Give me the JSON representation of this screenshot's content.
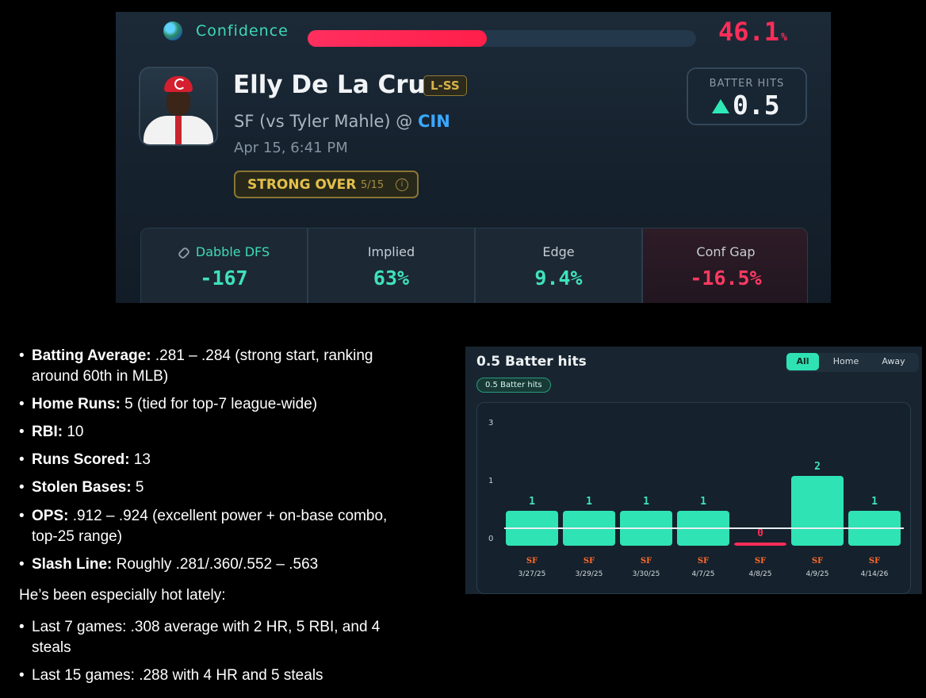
{
  "header": {
    "confidence_label": "Confidence",
    "confidence_value": "46.1",
    "confidence_unit": "%",
    "confidence_fraction": 0.461
  },
  "player": {
    "name": "Elly De La Cruz",
    "position": "L-SS",
    "matchup_prefix": "SF (vs Tyler Mahle) @ ",
    "matchup_team": "CIN",
    "game_time": "Apr 15, 6:41 PM",
    "signal_label": "STRONG OVER",
    "signal_count": "5/15",
    "info_glyph": "i"
  },
  "prop": {
    "label": "BATTER HITS",
    "line": "0.5",
    "direction_icon": "up-triangle-icon"
  },
  "stats": [
    {
      "title": "Dabble DFS",
      "value": "-167"
    },
    {
      "title": "Implied",
      "value": "63%"
    },
    {
      "title": "Edge",
      "value": "9.4%"
    },
    {
      "title": "Conf Gap",
      "value": "-16.5%"
    }
  ],
  "bullets": [
    {
      "label": "Batting Average:",
      "text": " .281 – .284 (strong start, ranking around 60th in MLB)"
    },
    {
      "label": "Home Runs:",
      "text": " 5 (tied for top-7 league-wide)"
    },
    {
      "label": "RBI:",
      "text": " 10"
    },
    {
      "label": "Runs Scored:",
      "text": " 13"
    },
    {
      "label": "Stolen Bases:",
      "text": " 5"
    },
    {
      "label": "OPS:",
      "text": " .912 – .924 (excellent power + on-base combo, top-25 range)"
    },
    {
      "label": "Slash Line:",
      "text": " Roughly .281/.360/.552 – .563"
    }
  ],
  "hot_intro": "He’s been especially hot lately:",
  "hot_bullets": [
    "Last 7 games: .308 average with 2 HR, 5 RBI, and 4 steals",
    "Last 15 games: .288 with 4 HR and 5 steals"
  ],
  "panel": {
    "title": "0.5 Batter hits",
    "filters": [
      "All",
      "Home",
      "Away"
    ],
    "active_filter": "All",
    "chip": "0.5 Batter hits"
  },
  "chart_data": {
    "type": "bar",
    "categories": [
      "3/27/25",
      "3/29/25",
      "3/30/25",
      "4/7/25",
      "4/8/25",
      "4/9/25",
      "4/14/26"
    ],
    "values": [
      1,
      1,
      1,
      1,
      0,
      2,
      1
    ],
    "line_value": 0.5,
    "yticks": [
      "3",
      "1",
      "0"
    ],
    "opponent_icon": "sf-giants-logo-icon",
    "colors": {
      "hit": "#2fe3b4",
      "miss": "#ff2d58",
      "line": "#e9eef2"
    }
  }
}
